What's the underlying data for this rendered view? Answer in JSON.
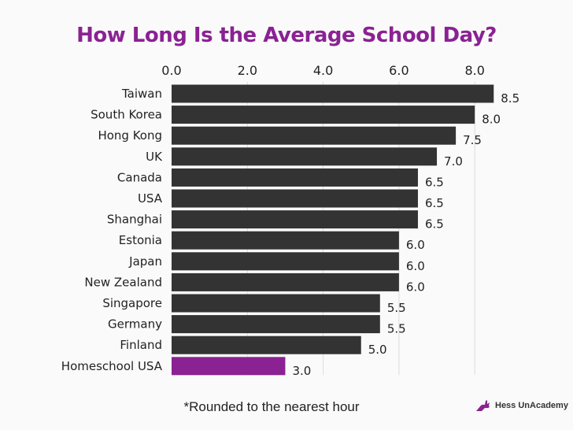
{
  "chart_data": {
    "type": "bar",
    "orientation": "horizontal",
    "title": "How Long Is the Average School Day?",
    "categories": [
      "Taiwan",
      "South Korea",
      "Hong Kong",
      "UK",
      "Canada",
      "USA",
      "Shanghai",
      "Estonia",
      "Japan",
      "New Zealand",
      "Singapore",
      "Germany",
      "Finland",
      "Homeschool USA"
    ],
    "values": [
      8.5,
      8.0,
      7.5,
      7.0,
      6.5,
      6.5,
      6.5,
      6.0,
      6.0,
      6.0,
      5.5,
      5.5,
      5.0,
      3.0
    ],
    "value_labels": [
      "8.5",
      "8.0",
      "7.5",
      "7.0",
      "6.5",
      "6.5",
      "6.5",
      "6.0",
      "6.0",
      "6.0",
      "5.5",
      "5.5",
      "5.0",
      "3.0"
    ],
    "x_ticks": [
      "0.0",
      "2.0",
      "4.0",
      "6.0",
      "8.0"
    ],
    "x_tick_values": [
      0,
      2,
      4,
      6,
      8
    ],
    "xlim": [
      0,
      8.5
    ],
    "axis_position": "top",
    "grid": true,
    "colors": {
      "default": "#333333",
      "highlight": "#8a2293",
      "highlight_category": "Homeschool USA"
    }
  },
  "footnote": "*Rounded to the nearest hour",
  "logo": {
    "text": "Hess UnAcademy",
    "icon": "rabbit-icon",
    "color": "#8a2293"
  }
}
